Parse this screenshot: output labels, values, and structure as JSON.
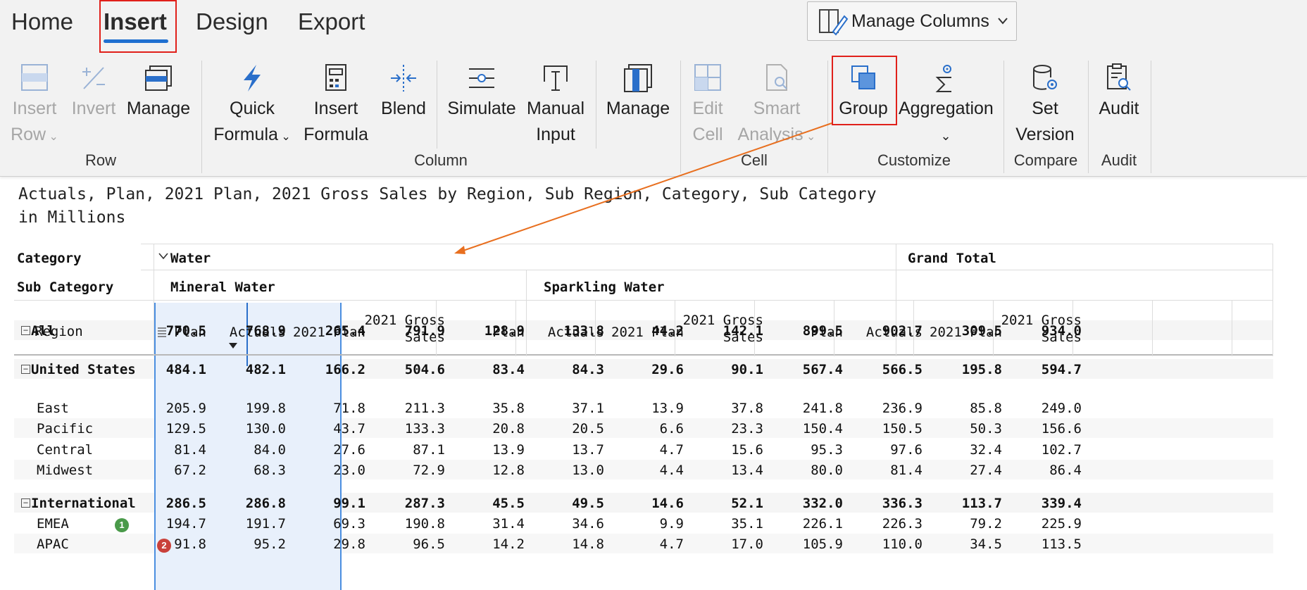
{
  "tabs": [
    {
      "label": "Home"
    },
    {
      "label": "Insert"
    },
    {
      "label": "Design"
    },
    {
      "label": "Export"
    }
  ],
  "manage_columns": {
    "label": "Manage Columns"
  },
  "ribbon": {
    "row_group": {
      "label": "Row",
      "insert_row": [
        "Insert",
        "Row"
      ],
      "invert": "Invert",
      "manage": "Manage"
    },
    "column_group": {
      "label": "Column",
      "quick_formula": [
        "Quick",
        "Formula"
      ],
      "insert_formula": [
        "Insert",
        "Formula"
      ],
      "blend": "Blend",
      "simulate": "Simulate",
      "manual_input": [
        "Manual",
        "Input"
      ],
      "manage": "Manage"
    },
    "cell_group": {
      "label": "Cell",
      "edit_cell": [
        "Edit",
        "Cell"
      ],
      "smart_analysis": [
        "Smart",
        "Analysis"
      ]
    },
    "customize_group": {
      "label": "Customize",
      "group": "Group",
      "aggregation": "Aggregation"
    },
    "compare_group": {
      "label": "Compare",
      "set_version": [
        "Set",
        "Version"
      ]
    },
    "audit_group": {
      "label": "Audit",
      "audit": "Audit"
    }
  },
  "report": {
    "subtitle": "Actuals, Plan, 2021 Plan, 2021 Gross Sales by Region, Sub Region, Category, Sub Category\nin Millions"
  },
  "table": {
    "row_headers": {
      "category": "Category",
      "sub_category": "Sub Category",
      "region": "Region"
    },
    "category_water": "Water",
    "grand_total": "Grand Total",
    "sub_categories": [
      "Mineral Water",
      "Sparkling Water"
    ],
    "column_labels": [
      "Plan",
      "Actuals",
      "2021 Plan",
      "2021 Gross\nSales",
      "Plan",
      "Actuals",
      "2021 Plan",
      "2021 Gross\nSales",
      "Plan",
      "Actuals",
      "2021 Plan",
      "2021 Gross\nSales"
    ],
    "rows": [
      {
        "label": "All",
        "bold": true,
        "expand": true,
        "indent": 0,
        "values": [
          "770.5",
          "768.9",
          "265.4",
          "791.9",
          "128.9",
          "133.8",
          "44.2",
          "142.1",
          "899.5",
          "902.7",
          "309.5",
          "934.0"
        ]
      },
      {
        "label": "United States",
        "bold": true,
        "expand": true,
        "indent": 0,
        "values": [
          "484.1",
          "482.1",
          "166.2",
          "504.6",
          "83.4",
          "84.3",
          "29.6",
          "90.1",
          "567.4",
          "566.5",
          "195.8",
          "594.7"
        ]
      },
      {
        "label": "East",
        "bold": false,
        "expand": false,
        "indent": 1,
        "values": [
          "205.9",
          "199.8",
          "71.8",
          "211.3",
          "35.8",
          "37.1",
          "13.9",
          "37.8",
          "241.8",
          "236.9",
          "85.8",
          "249.0"
        ]
      },
      {
        "label": "Pacific",
        "bold": false,
        "expand": false,
        "indent": 1,
        "values": [
          "129.5",
          "130.0",
          "43.7",
          "133.3",
          "20.8",
          "20.5",
          "6.6",
          "23.3",
          "150.4",
          "150.5",
          "50.3",
          "156.6"
        ]
      },
      {
        "label": "Central",
        "bold": false,
        "expand": false,
        "indent": 1,
        "values": [
          "81.4",
          "84.0",
          "27.6",
          "87.1",
          "13.9",
          "13.7",
          "4.7",
          "15.6",
          "95.3",
          "97.6",
          "32.4",
          "102.7"
        ]
      },
      {
        "label": "Midwest",
        "bold": false,
        "expand": false,
        "indent": 1,
        "values": [
          "67.2",
          "68.3",
          "23.0",
          "72.9",
          "12.8",
          "13.0",
          "4.4",
          "13.4",
          "80.0",
          "81.4",
          "27.4",
          "86.4"
        ]
      },
      {
        "label": "International",
        "bold": true,
        "expand": true,
        "indent": 0,
        "values": [
          "286.5",
          "286.8",
          "99.1",
          "287.3",
          "45.5",
          "49.5",
          "14.6",
          "52.1",
          "332.0",
          "336.3",
          "113.7",
          "339.4"
        ]
      },
      {
        "label": "EMEA",
        "bold": false,
        "expand": false,
        "indent": 1,
        "badge": "1",
        "badge_color": "#4a9a4a",
        "values": [
          "194.7",
          "191.7",
          "69.3",
          "190.8",
          "31.4",
          "34.6",
          "9.9",
          "35.1",
          "226.1",
          "226.3",
          "79.2",
          "225.9"
        ]
      },
      {
        "label": "APAC",
        "bold": false,
        "expand": false,
        "indent": 1,
        "badge": "2",
        "badge_color": "#c9403a",
        "values": [
          "91.8",
          "95.2",
          "29.8",
          "96.5",
          "14.2",
          "14.8",
          "4.7",
          "17.0",
          "105.9",
          "110.0",
          "34.5",
          "113.5"
        ]
      }
    ]
  },
  "colors": {
    "accent": "#1f6fd0",
    "highlight_box": "#e0201a",
    "annotation_arrow": "#e86f1f",
    "selected_column": "#e8f0fb"
  }
}
